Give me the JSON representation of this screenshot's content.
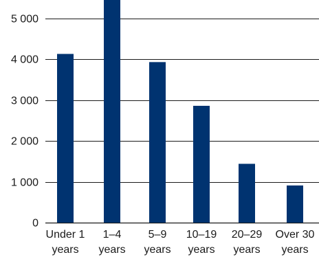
{
  "chart_data": {
    "type": "bar",
    "categories": [
      [
        "Under 1",
        "years"
      ],
      [
        "1–4",
        "years"
      ],
      [
        "5–9",
        "years"
      ],
      [
        "10–19",
        "years"
      ],
      [
        "20–29",
        "years"
      ],
      [
        "Over 30",
        "years"
      ]
    ],
    "values": [
      4130,
      5600,
      3930,
      2860,
      1440,
      910
    ],
    "yticks": [
      0,
      1000,
      2000,
      3000,
      4000,
      5000
    ],
    "ytick_labels": [
      "0",
      "1 000",
      "2 000",
      "3 000",
      "4 000",
      "5 000"
    ],
    "ylim": [
      0,
      5450
    ],
    "grid": true,
    "title": "",
    "xlabel": "",
    "ylabel": "",
    "colors": {
      "bar": "#003370",
      "grid": "#1a1a1a",
      "axis": "#1a1a1a"
    }
  }
}
